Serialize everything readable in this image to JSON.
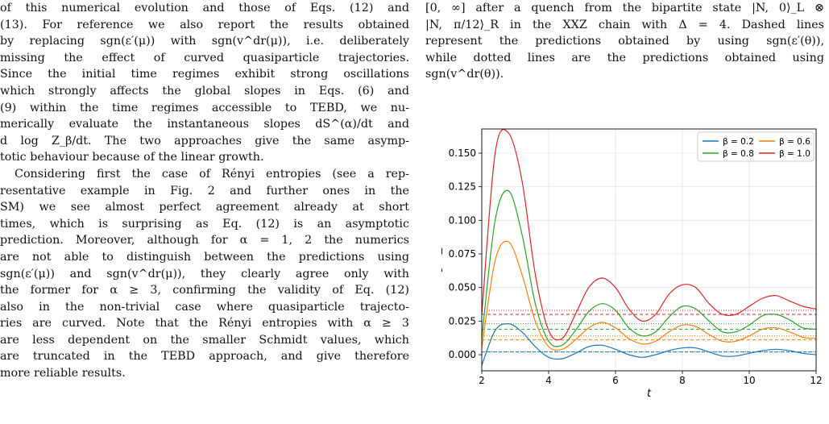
{
  "left_column": {
    "paragraph_1_lines": [
      "of this numerical evolution and those of Eqs. (12) and",
      "(13). For reference we also report the results obtained",
      "by replacing sgn(ε′(μ)) with sgn(v^dr(μ)), i.e. deliberately",
      "missing the effect of curved quasiparticle trajectories.",
      "Since the initial time regimes exhibit strong oscillations",
      "which strongly affects the global slopes in Eqs. (6) and",
      "(9) within the time regimes accessible to TEBD, we nu-",
      "merically evaluate the instantaneous slopes dS^(α)/dt and",
      "d log Z_β/dt. The two approaches give the same asymp-",
      "totic behaviour because of the linear growth."
    ],
    "paragraph_2_lines": [
      "Considering first the case of Rényi entropies (see a rep-",
      "resentative example in Fig. 2 and further ones in the",
      "SM) we see almost perfect agreement already at short",
      "times, which is surprising as Eq. (12) is an asymptotic",
      "prediction. Moreover, although for α = 1, 2 the numerics",
      "are not able to distinguish between the predictions using",
      "sgn(ε′(μ)) and sgn(v^dr(μ)), they clearly agree only with",
      "the former for α ≥ 3, confirming the validity of Eq. (12)",
      "also in the non-trivial case where quasiparticle trajecto-",
      "ries are curved. Note that the Rényi entropies with α ≥ 3",
      "are less dependent on the smaller Schmidt values, which",
      "are truncated in the TEBD approach, and give therefore",
      "more reliable results."
    ]
  },
  "right_column": {
    "caption_lines": [
      "[0, ∞] after a quench from the bipartite state |N, 0⟩_L ⊗",
      "|N, π/12⟩_R in the XXZ chain with Δ = 4. Dashed lines",
      "represent the predictions obtained by using sgn(ε′(θ)),",
      "while dotted lines are the predictions obtained using",
      "sgn(v^dr(θ))."
    ]
  },
  "chart_data": {
    "type": "line",
    "xlabel": "t",
    "ylabel": "dlog(Z_β(t))/dt",
    "xlim": [
      2,
      12
    ],
    "ylim": [
      -0.012,
      0.168
    ],
    "xticks": [
      2,
      4,
      6,
      8,
      10,
      12
    ],
    "yticks": [
      0.0,
      0.025,
      0.05,
      0.075,
      0.1,
      0.125,
      0.15
    ],
    "ytick_labels": [
      "0.000",
      "0.025",
      "0.050",
      "0.075",
      "0.100",
      "0.125",
      "0.150"
    ],
    "grid": true,
    "legend_position": "top-right",
    "series": [
      {
        "name": "β = 0.2",
        "color": "#1f77b4",
        "x": [
          2.0,
          2.4,
          2.8,
          3.2,
          3.6,
          4.0,
          4.4,
          4.8,
          5.2,
          5.6,
          6.0,
          6.4,
          6.8,
          7.2,
          7.6,
          8.0,
          8.4,
          8.8,
          9.2,
          9.6,
          10.0,
          10.4,
          10.8,
          11.2,
          11.6,
          12.0
        ],
        "y": [
          -0.008,
          0.018,
          0.023,
          0.017,
          0.006,
          -0.002,
          -0.003,
          0.001,
          0.006,
          0.007,
          0.004,
          0.0,
          -0.002,
          0.0,
          0.003,
          0.005,
          0.005,
          0.002,
          -0.001,
          -0.001,
          0.001,
          0.003,
          0.004,
          0.003,
          0.001,
          0.0
        ],
        "dashed": 0.002,
        "dotted": 0.002
      },
      {
        "name": "β = 0.6",
        "color": "#ff7f0e",
        "x": [
          2.0,
          2.4,
          2.8,
          3.2,
          3.6,
          4.0,
          4.4,
          4.8,
          5.2,
          5.6,
          6.0,
          6.4,
          6.8,
          7.2,
          7.6,
          8.0,
          8.4,
          8.8,
          9.2,
          9.6,
          10.0,
          10.4,
          10.8,
          11.2,
          11.6,
          12.0
        ],
        "y": [
          0.005,
          0.07,
          0.084,
          0.06,
          0.025,
          0.006,
          0.004,
          0.011,
          0.02,
          0.024,
          0.02,
          0.012,
          0.008,
          0.01,
          0.017,
          0.022,
          0.021,
          0.015,
          0.01,
          0.01,
          0.014,
          0.019,
          0.02,
          0.017,
          0.013,
          0.012
        ],
        "dashed": 0.011,
        "dotted": 0.014
      },
      {
        "name": "β = 0.8",
        "color": "#2ca02c",
        "x": [
          2.0,
          2.4,
          2.8,
          3.2,
          3.6,
          4.0,
          4.4,
          4.8,
          5.2,
          5.6,
          6.0,
          6.4,
          6.8,
          7.2,
          7.6,
          8.0,
          8.4,
          8.8,
          9.2,
          9.6,
          10.0,
          10.4,
          10.8,
          11.2,
          11.6,
          12.0
        ],
        "y": [
          0.012,
          0.1,
          0.122,
          0.09,
          0.038,
          0.01,
          0.007,
          0.018,
          0.032,
          0.038,
          0.033,
          0.02,
          0.014,
          0.017,
          0.028,
          0.036,
          0.034,
          0.025,
          0.017,
          0.017,
          0.022,
          0.029,
          0.03,
          0.026,
          0.02,
          0.019
        ],
        "dashed": 0.019,
        "dotted": 0.023
      },
      {
        "name": "β = 1.0",
        "color": "#d62728",
        "x": [
          2.0,
          2.4,
          2.8,
          3.2,
          3.6,
          4.0,
          4.4,
          4.8,
          5.2,
          5.6,
          6.0,
          6.4,
          6.8,
          7.2,
          7.6,
          8.0,
          8.4,
          8.8,
          9.2,
          9.6,
          10.0,
          10.4,
          10.8,
          11.2,
          11.6,
          12.0
        ],
        "y": [
          0.03,
          0.15,
          0.165,
          0.13,
          0.06,
          0.018,
          0.012,
          0.03,
          0.05,
          0.057,
          0.05,
          0.034,
          0.025,
          0.03,
          0.045,
          0.052,
          0.05,
          0.038,
          0.03,
          0.03,
          0.036,
          0.042,
          0.044,
          0.04,
          0.036,
          0.034
        ],
        "dashed": 0.03,
        "dotted": 0.033
      }
    ]
  }
}
